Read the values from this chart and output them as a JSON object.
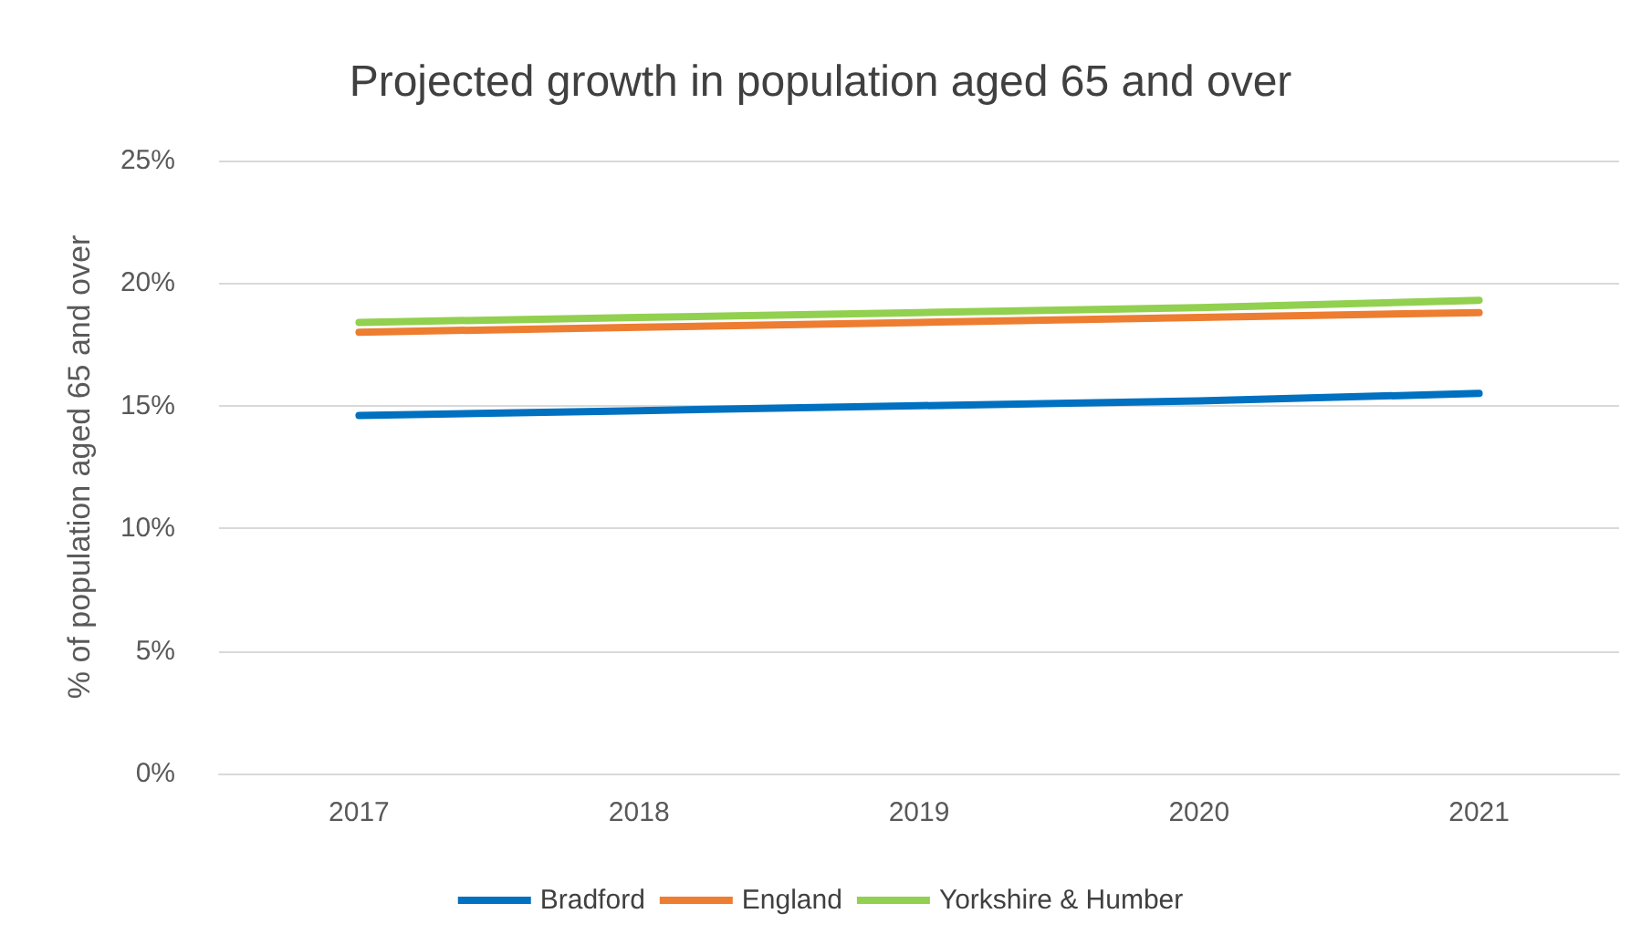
{
  "chart_data": {
    "type": "line",
    "title": "Projected growth in population aged 65 and over",
    "ylabel": "% of population aged 65 and over",
    "categories": [
      "2017",
      "2018",
      "2019",
      "2020",
      "2021"
    ],
    "series": [
      {
        "name": "Bradford",
        "color": "#0070c0",
        "values": [
          14.6,
          14.8,
          15.0,
          15.2,
          15.5
        ]
      },
      {
        "name": "England",
        "color": "#ed7d31",
        "values": [
          18.0,
          18.2,
          18.4,
          18.6,
          18.8
        ]
      },
      {
        "name": "Yorkshire & Humber",
        "color": "#92d050",
        "values": [
          18.4,
          18.6,
          18.8,
          19.0,
          19.3
        ]
      }
    ],
    "ylim": [
      0,
      25
    ],
    "yticks": [
      {
        "value": 0,
        "label": "0%"
      },
      {
        "value": 5,
        "label": "5%"
      },
      {
        "value": 10,
        "label": "10%"
      },
      {
        "value": 15,
        "label": "15%"
      },
      {
        "value": 20,
        "label": "20%"
      },
      {
        "value": 25,
        "label": "25%"
      }
    ],
    "grid": "y",
    "legend": "bottom",
    "marker": "none",
    "line_style": "solid"
  }
}
